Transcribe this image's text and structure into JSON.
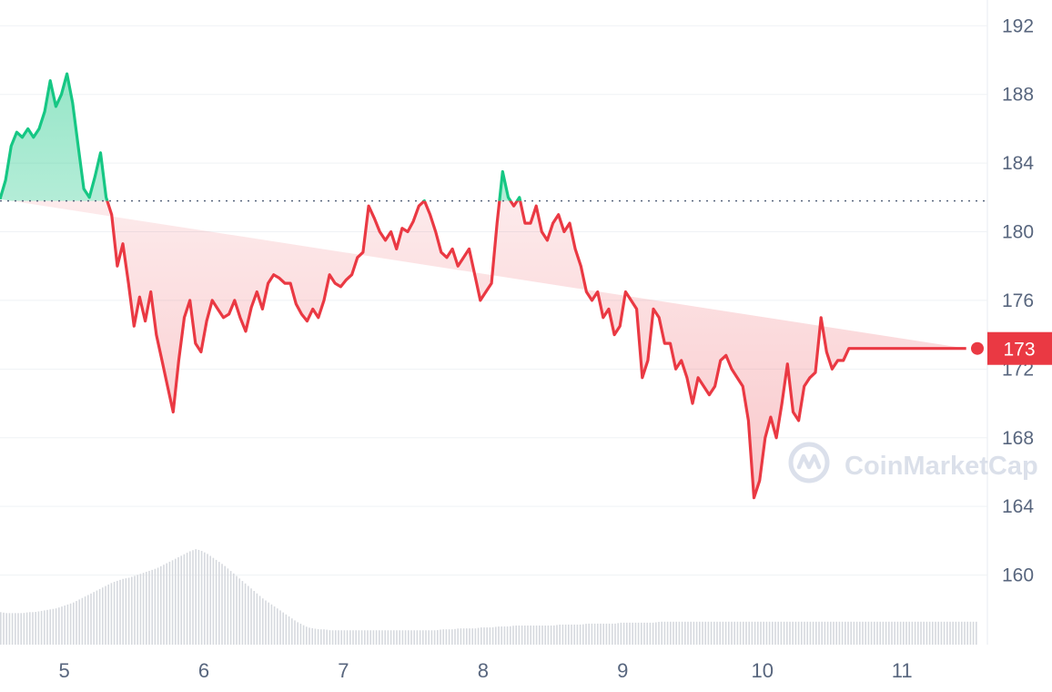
{
  "watermark": "CoinMarketCap",
  "colors": {
    "up": "#16c784",
    "down": "#ea3943",
    "volume": "#d6d9de",
    "grid": "#eff2f5",
    "axis_text": "#58667e"
  },
  "chart_data": {
    "type": "line",
    "title": "",
    "xlabel": "",
    "ylabel": "",
    "x_ticks": [
      "5",
      "6",
      "7",
      "8",
      "9",
      "10",
      "11"
    ],
    "y_ticks": [
      160,
      164,
      168,
      172,
      176,
      180,
      184,
      188,
      192
    ],
    "ylim": [
      156,
      193.5
    ],
    "xlim": [
      4.54,
      11.54
    ],
    "reference_price": 181.8,
    "current_price": 173.2,
    "current_price_label": "173",
    "grid": true,
    "series": [
      {
        "x": [
          4.54,
          4.58,
          4.62,
          4.66,
          4.7,
          4.74,
          4.78,
          4.82,
          4.86,
          4.9,
          4.94,
          4.98,
          5.02,
          5.06,
          5.1,
          5.14,
          5.18,
          5.22,
          5.26,
          5.3,
          5.34,
          5.38,
          5.42,
          5.46,
          5.5,
          5.54,
          5.58,
          5.62,
          5.66,
          5.7,
          5.74,
          5.78,
          5.82,
          5.86,
          5.9,
          5.94,
          5.98,
          6.02,
          6.06,
          6.1,
          6.14,
          6.18,
          6.22,
          6.26,
          6.3,
          6.34,
          6.38,
          6.42,
          6.46,
          6.5,
          6.54,
          6.58,
          6.62,
          6.66,
          6.7,
          6.74,
          6.78,
          6.82,
          6.86,
          6.9,
          6.94,
          6.98,
          7.02,
          7.06,
          7.1,
          7.14,
          7.18,
          7.22,
          7.26,
          7.3,
          7.34,
          7.38,
          7.42,
          7.46,
          7.5,
          7.54,
          7.58,
          7.62,
          7.66,
          7.7,
          7.74,
          7.78,
          7.82,
          7.86,
          7.9,
          7.94,
          7.98,
          8.02,
          8.06,
          8.1,
          8.14,
          8.18,
          8.22,
          8.26,
          8.3,
          8.34,
          8.38,
          8.42,
          8.46,
          8.5,
          8.54,
          8.58,
          8.62,
          8.66,
          8.7,
          8.74,
          8.78,
          8.82,
          8.86,
          8.9,
          8.94,
          8.98,
          9.02,
          9.06,
          9.1,
          9.14,
          9.18,
          9.22,
          9.26,
          9.3,
          9.34,
          9.38,
          9.42,
          9.46,
          9.5,
          9.54,
          9.58,
          9.62,
          9.66,
          9.7,
          9.74,
          9.78,
          9.82,
          9.86,
          9.9,
          9.94,
          9.98,
          10.02,
          10.06,
          10.1,
          10.14,
          10.18,
          10.22,
          10.26,
          10.3,
          10.34,
          10.38,
          10.42,
          10.46,
          10.5,
          10.54,
          10.58,
          10.62,
          10.66,
          10.7,
          10.74,
          10.78,
          10.82,
          10.86,
          10.9,
          10.94,
          10.98,
          11.02,
          11.06,
          11.1,
          11.14,
          11.18,
          11.22,
          11.26,
          11.3,
          11.34,
          11.38,
          11.42,
          11.46,
          11.5,
          11.54
        ],
        "price": [
          181.9,
          183.0,
          185.0,
          185.8,
          185.5,
          186.0,
          185.5,
          186.0,
          187.0,
          188.8,
          187.3,
          188.0,
          189.2,
          187.5,
          185.0,
          182.5,
          182.0,
          183.2,
          184.6,
          182.0,
          181.0,
          178.0,
          179.3,
          177.0,
          174.5,
          176.2,
          174.8,
          176.5,
          174.0,
          172.5,
          171.0,
          169.5,
          172.5,
          175.0,
          176.0,
          173.5,
          173.0,
          174.8,
          176.0,
          175.5,
          175.0,
          175.2,
          176.0,
          175.0,
          174.2,
          175.6,
          176.5,
          175.5,
          177.0,
          177.5,
          177.3,
          177.0,
          177.0,
          175.8,
          175.2,
          174.8,
          175.5,
          175.0,
          176.0,
          177.5,
          177.0,
          176.8,
          177.2,
          177.5,
          178.5,
          178.8,
          181.5,
          180.8,
          180.0,
          179.5,
          180.0,
          179.0,
          180.2,
          180.0,
          180.6,
          181.5,
          181.8,
          181.0,
          180.0,
          178.8,
          178.5,
          179.0,
          178.0,
          178.5,
          179.0,
          177.5,
          176.0,
          176.5,
          177.0,
          180.5,
          183.5,
          182.0,
          181.5,
          182.0,
          180.5,
          180.5,
          181.5,
          180.0,
          179.5,
          180.5,
          181.0,
          180.0,
          180.5,
          179.0,
          178.0,
          176.5,
          176.0,
          176.5,
          175.0,
          175.5,
          174.0,
          174.5,
          176.5,
          176.0,
          175.5,
          171.5,
          172.5,
          175.5,
          175.0,
          173.5,
          173.5,
          172.0,
          172.5,
          171.5,
          170.0,
          171.5,
          171.0,
          170.5,
          171.0,
          172.5,
          172.8,
          172.0,
          171.5,
          171.0,
          169.0,
          164.5,
          165.5,
          168.0,
          169.2,
          168.0,
          170.0,
          172.3,
          169.5,
          169.0,
          171.0,
          171.5,
          171.8,
          175.0,
          173.0,
          172.0,
          172.5,
          172.5,
          173.2,
          173.2,
          173.2,
          173.2,
          173.2,
          173.2,
          173.2,
          173.2,
          173.2,
          173.2,
          173.2,
          173.2,
          173.2,
          173.2,
          173.2,
          173.2,
          173.2,
          173.2,
          173.2,
          173.2,
          173.2,
          173.2
        ],
        "volume": [
          0.34,
          0.33,
          0.33,
          0.33,
          0.33,
          0.34,
          0.34,
          0.35,
          0.36,
          0.37,
          0.38,
          0.4,
          0.42,
          0.44,
          0.47,
          0.5,
          0.53,
          0.56,
          0.59,
          0.62,
          0.65,
          0.67,
          0.69,
          0.7,
          0.72,
          0.74,
          0.76,
          0.78,
          0.8,
          0.83,
          0.86,
          0.89,
          0.92,
          0.95,
          0.98,
          1.0,
          0.98,
          0.95,
          0.91,
          0.87,
          0.83,
          0.78,
          0.73,
          0.68,
          0.63,
          0.58,
          0.53,
          0.48,
          0.44,
          0.4,
          0.36,
          0.32,
          0.28,
          0.24,
          0.21,
          0.18,
          0.17,
          0.16,
          0.16,
          0.15,
          0.15,
          0.15,
          0.15,
          0.15,
          0.15,
          0.15,
          0.15,
          0.15,
          0.15,
          0.15,
          0.15,
          0.15,
          0.15,
          0.15,
          0.15,
          0.15,
          0.15,
          0.15,
          0.15,
          0.16,
          0.16,
          0.16,
          0.17,
          0.17,
          0.17,
          0.17,
          0.18,
          0.18,
          0.18,
          0.19,
          0.19,
          0.19,
          0.2,
          0.2,
          0.2,
          0.2,
          0.2,
          0.2,
          0.2,
          0.2,
          0.21,
          0.21,
          0.21,
          0.21,
          0.21,
          0.22,
          0.22,
          0.22,
          0.22,
          0.22,
          0.22,
          0.23,
          0.23,
          0.23,
          0.23,
          0.23,
          0.23,
          0.23,
          0.24,
          0.24,
          0.24,
          0.24,
          0.24,
          0.24,
          0.24,
          0.24,
          0.24,
          0.24,
          0.24,
          0.24,
          0.24,
          0.24,
          0.24,
          0.24,
          0.24,
          0.24,
          0.24,
          0.24,
          0.24,
          0.24,
          0.24,
          0.24,
          0.24,
          0.24,
          0.24,
          0.24,
          0.24,
          0.24,
          0.24,
          0.24,
          0.24,
          0.24,
          0.24,
          0.24,
          0.24,
          0.24,
          0.24,
          0.24,
          0.24,
          0.24,
          0.24,
          0.24,
          0.24,
          0.24,
          0.24,
          0.24,
          0.24,
          0.24,
          0.24,
          0.24,
          0.24,
          0.24,
          0.24,
          0.24,
          0.24,
          0.24
        ]
      }
    ]
  }
}
